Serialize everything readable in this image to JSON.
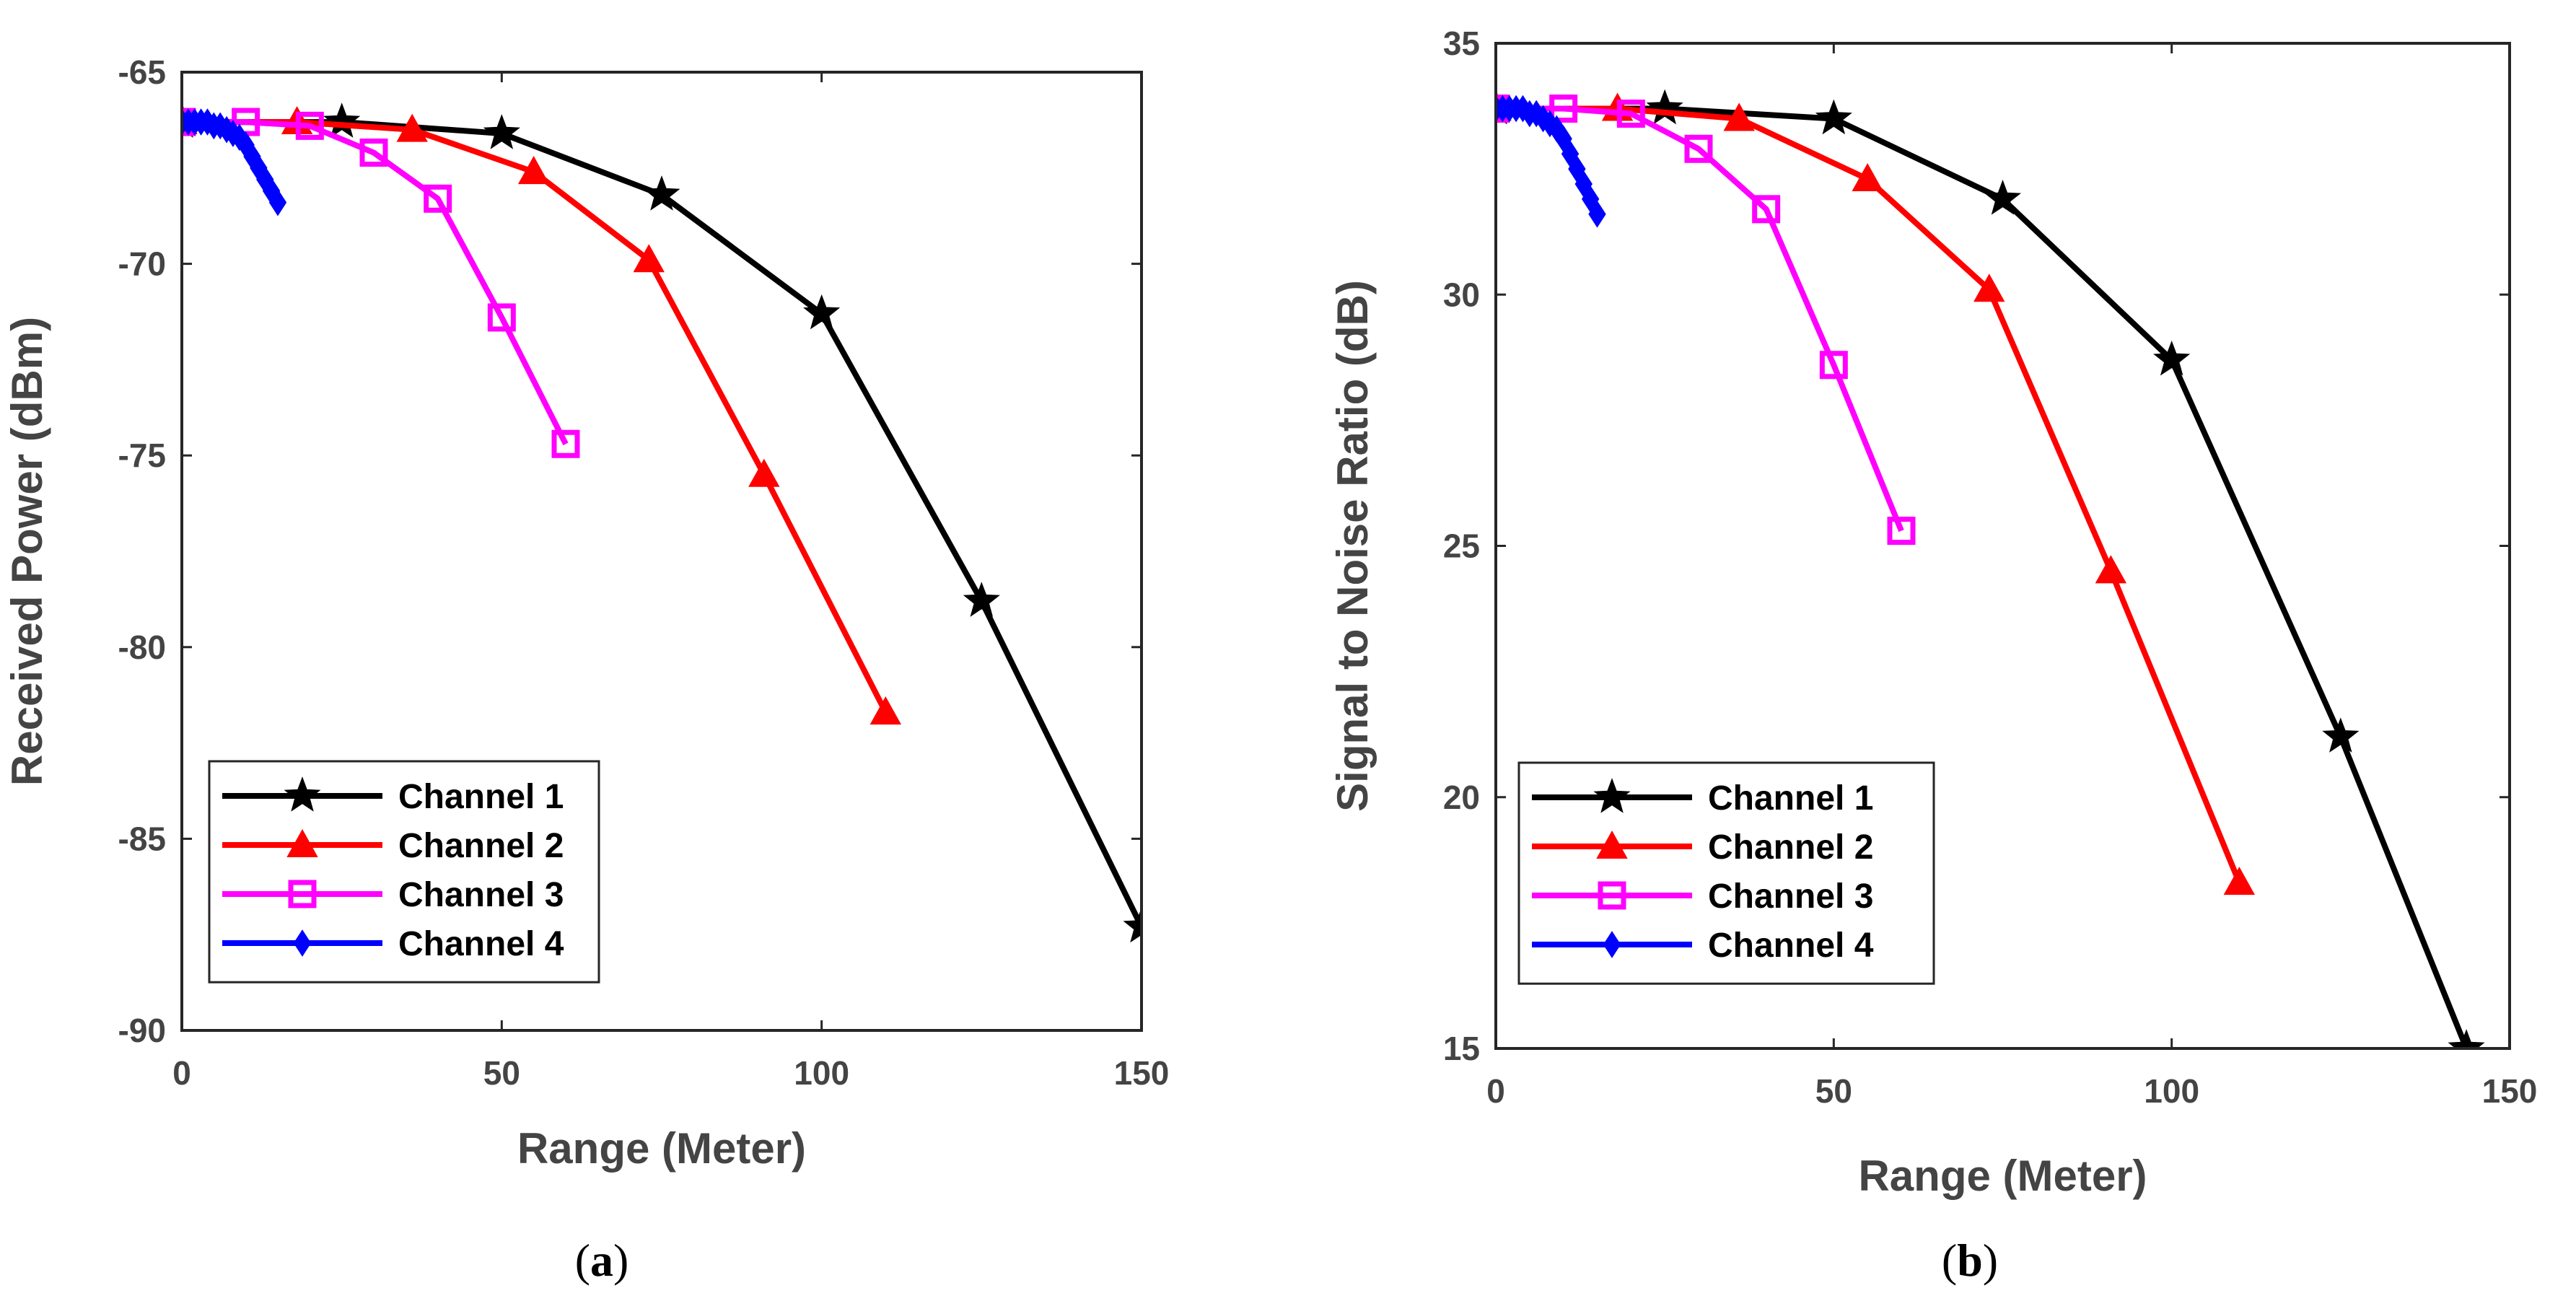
{
  "chart_data": [
    {
      "type": "line",
      "panel_label": {
        "open": "(",
        "letter": "a",
        "close": ")"
      },
      "xlabel": "Range (Meter)",
      "ylabel": "Received Power (dBm)",
      "xlim": [
        0,
        150
      ],
      "ylim": [
        -90,
        -65
      ],
      "xticks": [
        0,
        50,
        100,
        150
      ],
      "yticks": [
        -90,
        -85,
        -80,
        -75,
        -70,
        -65
      ],
      "legend_position": "bottom-left",
      "series": [
        {
          "name": "Channel 1",
          "color": "#000000",
          "marker": "star",
          "x": [
            0,
            25,
            50,
            75,
            100,
            125,
            150
          ],
          "y": [
            -66.3,
            -66.3,
            -66.6,
            -68.2,
            -71.3,
            -78.8,
            -87.3
          ]
        },
        {
          "name": "Channel 2",
          "color": "#ff0000",
          "marker": "triangle",
          "x": [
            0,
            18,
            36,
            55,
            73,
            91,
            110
          ],
          "y": [
            -66.3,
            -66.3,
            -66.5,
            -67.6,
            -69.9,
            -75.5,
            -81.7
          ]
        },
        {
          "name": "Channel 3",
          "color": "#ff00ff",
          "marker": "square",
          "x": [
            0,
            10,
            20,
            30,
            40,
            50,
            60
          ],
          "y": [
            -66.3,
            -66.3,
            -66.4,
            -67.1,
            -68.3,
            -71.4,
            -74.7
          ]
        },
        {
          "name": "Channel 4",
          "color": "#0000ff",
          "marker": "diamond",
          "x": [
            0,
            1,
            2,
            3,
            4,
            5,
            6,
            7,
            8,
            9,
            10,
            11,
            12,
            13,
            14,
            15
          ],
          "y": [
            -66.3,
            -66.3,
            -66.3,
            -66.3,
            -66.3,
            -66.4,
            -66.4,
            -66.5,
            -66.6,
            -66.7,
            -66.9,
            -67.2,
            -67.5,
            -67.8,
            -68.1,
            -68.4
          ]
        }
      ]
    },
    {
      "type": "line",
      "panel_label": {
        "open": "(",
        "letter": "b",
        "close": ")"
      },
      "xlabel": "Range (Meter)",
      "ylabel": "Signal to Noise Ratio (dB)",
      "xlim": [
        0,
        150
      ],
      "ylim": [
        15,
        35
      ],
      "xticks": [
        0,
        50,
        100,
        150
      ],
      "yticks": [
        15,
        20,
        25,
        30,
        35
      ],
      "legend_position": "bottom-left",
      "series": [
        {
          "name": "Channel 1",
          "color": "#000000",
          "marker": "star",
          "x": [
            0,
            25,
            50,
            75,
            100,
            125,
            143.6
          ],
          "y": [
            33.7,
            33.7,
            33.5,
            31.9,
            28.7,
            21.2,
            15
          ]
        },
        {
          "name": "Channel 2",
          "color": "#ff0000",
          "marker": "triangle",
          "x": [
            0,
            18,
            36,
            55,
            73,
            91,
            110
          ],
          "y": [
            33.7,
            33.7,
            33.5,
            32.3,
            30.1,
            24.5,
            18.3
          ]
        },
        {
          "name": "Channel 3",
          "color": "#ff00ff",
          "marker": "square",
          "x": [
            0,
            10,
            20,
            30,
            40,
            50,
            60
          ],
          "y": [
            33.7,
            33.7,
            33.6,
            32.9,
            31.7,
            28.6,
            25.3
          ]
        },
        {
          "name": "Channel 4",
          "color": "#0000ff",
          "marker": "diamond",
          "x": [
            0,
            1,
            2,
            3,
            4,
            5,
            6,
            7,
            8,
            9,
            10,
            11,
            12,
            13,
            14,
            15
          ],
          "y": [
            33.7,
            33.7,
            33.7,
            33.7,
            33.7,
            33.6,
            33.6,
            33.5,
            33.4,
            33.3,
            33.1,
            32.8,
            32.5,
            32.2,
            31.9,
            31.6
          ]
        }
      ]
    }
  ]
}
